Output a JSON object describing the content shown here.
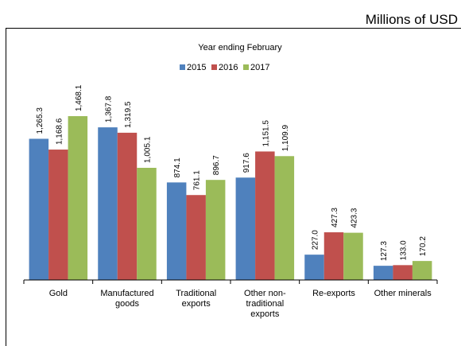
{
  "unit_label": "Millions of USD",
  "chart_data": {
    "type": "bar",
    "title": "Year ending February",
    "categories": [
      [
        "Gold"
      ],
      [
        "Manufactured",
        "goods"
      ],
      [
        "Traditional",
        "exports"
      ],
      [
        "Other non-",
        "traditional",
        "exports"
      ],
      [
        "Re-exports"
      ],
      [
        "Other minerals"
      ]
    ],
    "series": [
      {
        "name": "2015",
        "color": "#4F81BD",
        "values": [
          1265.3,
          1367.8,
          874.1,
          917.6,
          227.0,
          127.3
        ],
        "labels": [
          "1,265.3",
          "1,367.8",
          "874.1",
          "917.6",
          "227.0",
          "127.3"
        ]
      },
      {
        "name": "2016",
        "color": "#C0504D",
        "values": [
          1168.6,
          1319.5,
          761.1,
          1151.5,
          427.3,
          133.0
        ],
        "labels": [
          "1,168.6",
          "1,319.5",
          "761.1",
          "1,151.5",
          "427.3",
          "133.0"
        ]
      },
      {
        "name": "2017",
        "color": "#9BBB59",
        "values": [
          1468.1,
          1005.1,
          896.7,
          1109.9,
          423.3,
          170.2
        ],
        "labels": [
          "1,468.1",
          "1,005.1",
          "896.7",
          "1,109.9",
          "423.3",
          "170.2"
        ]
      }
    ],
    "ylim": [
      0,
      1600
    ],
    "legend_position": "top-center",
    "grid": false
  }
}
